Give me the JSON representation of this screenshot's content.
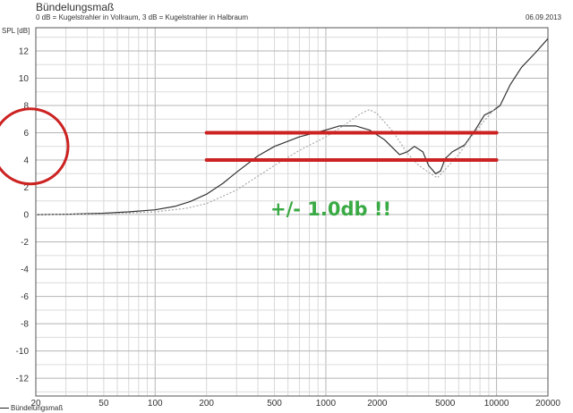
{
  "header": {
    "title": "Bündelungsmaß",
    "subtitle": "0 dB = Kugelstrahler in Vollraum, 3 dB = Kugelstrahler in Halbraum",
    "date": "06.09.2013"
  },
  "legend": {
    "label": "Bündelungsmaß"
  },
  "annotation": {
    "text": "+/- 1.0db !!",
    "color": "#3aaa45"
  },
  "chart_data": {
    "type": "line",
    "title": "Bündelungsmaß",
    "ylabel": "SPL [dB]",
    "xlabel": "",
    "xscale": "log",
    "xlim": [
      20,
      20000
    ],
    "ylim": [
      -13.3,
      13.7
    ],
    "grid": true,
    "x_ticks": [
      20,
      50,
      100,
      200,
      500,
      1000,
      2000,
      5000,
      10000,
      20000
    ],
    "y_ticks": [
      12,
      10,
      8,
      6,
      4,
      2,
      0,
      -2,
      -4,
      -6,
      -8,
      -10,
      -12
    ],
    "series": [
      {
        "name": "Bündelungsmaß",
        "style": "solid",
        "color": "#333333",
        "points": [
          [
            20,
            0
          ],
          [
            30,
            0.02
          ],
          [
            50,
            0.1
          ],
          [
            70,
            0.2
          ],
          [
            100,
            0.35
          ],
          [
            130,
            0.6
          ],
          [
            160,
            0.95
          ],
          [
            200,
            1.5
          ],
          [
            250,
            2.3
          ],
          [
            300,
            3.1
          ],
          [
            400,
            4.3
          ],
          [
            500,
            5.0
          ],
          [
            700,
            5.7
          ],
          [
            1000,
            6.2
          ],
          [
            1200,
            6.5
          ],
          [
            1500,
            6.5
          ],
          [
            1800,
            6.2
          ],
          [
            2200,
            5.5
          ],
          [
            2700,
            4.4
          ],
          [
            3000,
            4.6
          ],
          [
            3300,
            5.0
          ],
          [
            3700,
            4.6
          ],
          [
            4000,
            3.6
          ],
          [
            4400,
            3.0
          ],
          [
            4700,
            3.2
          ],
          [
            5000,
            4.1
          ],
          [
            5500,
            4.6
          ],
          [
            6500,
            5.1
          ],
          [
            7500,
            6.2
          ],
          [
            8500,
            7.3
          ],
          [
            9500,
            7.6
          ],
          [
            10500,
            8.0
          ],
          [
            12000,
            9.5
          ],
          [
            14000,
            10.8
          ],
          [
            17000,
            11.9
          ],
          [
            20000,
            12.9
          ]
        ]
      },
      {
        "style": "dotted",
        "color": "#aaaaaa",
        "points": [
          [
            20,
            0
          ],
          [
            50,
            0.05
          ],
          [
            100,
            0.2
          ],
          [
            150,
            0.45
          ],
          [
            200,
            0.8
          ],
          [
            300,
            1.8
          ],
          [
            500,
            3.6
          ],
          [
            700,
            4.7
          ],
          [
            1000,
            5.7
          ],
          [
            1300,
            6.6
          ],
          [
            1600,
            7.4
          ],
          [
            1800,
            7.7
          ],
          [
            2000,
            7.4
          ],
          [
            2500,
            6.0
          ],
          [
            3000,
            4.5
          ],
          [
            3500,
            3.6
          ],
          [
            4000,
            3.1
          ],
          [
            4500,
            2.7
          ],
          [
            5000,
            3.3
          ],
          [
            6000,
            4.4
          ],
          [
            7000,
            5.6
          ],
          [
            8500,
            6.9
          ],
          [
            10000,
            7.9
          ]
        ]
      }
    ],
    "reference_lines": [
      {
        "y": 6,
        "x_from": 200,
        "x_to": 10000,
        "color": "#cc2222"
      },
      {
        "y": 4,
        "x_from": 200,
        "x_to": 10000,
        "color": "#cc2222"
      }
    ],
    "highlight": {
      "shape": "ellipse",
      "around": "y-ticks 4 and 6",
      "color": "#cc2222"
    }
  }
}
